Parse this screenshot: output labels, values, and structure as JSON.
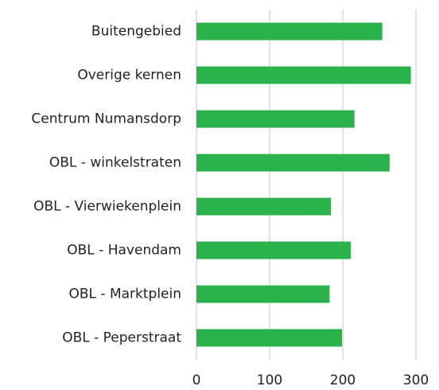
{
  "chart_data": {
    "type": "barh",
    "categories": [
      "Buitengebied",
      "Overige kernen",
      "Centrum Numansdorp",
      "OBL - winkelstraten",
      "OBL - Vierwiekenplein",
      "OBL - Havendam",
      "OBL - Marktplein",
      "OBL - Peperstraat"
    ],
    "values": [
      254,
      293,
      216,
      264,
      184,
      211,
      182,
      199
    ],
    "color": "#2bb34b",
    "xlim": [
      0,
      300
    ],
    "xticks": [
      0,
      100,
      200,
      300
    ],
    "grid": true
  }
}
